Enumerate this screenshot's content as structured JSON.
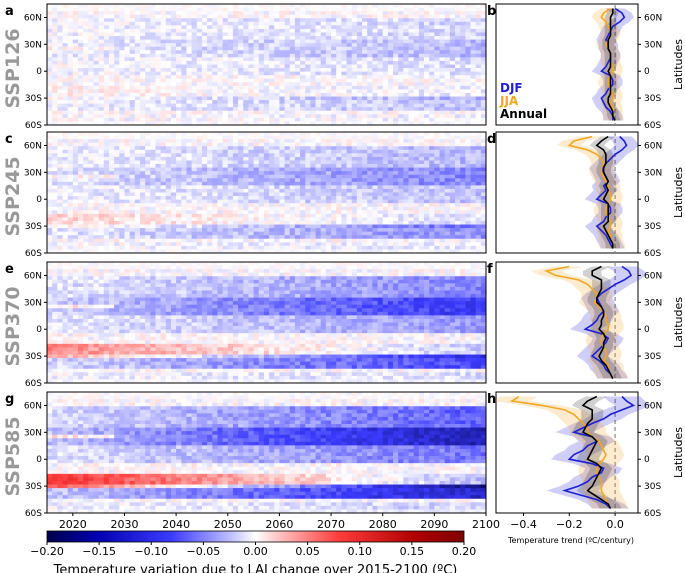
{
  "scenarios": [
    "SSP126",
    "SSP245",
    "SSP370",
    "SSP585"
  ],
  "panel_letters_left": [
    "a",
    "c",
    "e",
    "g"
  ],
  "panel_letters_right": [
    "b",
    "d",
    "f",
    "h"
  ],
  "right_axis_label": "Latitudes",
  "lat_ticks": [
    "60S",
    "30S",
    "0",
    "30N",
    "60N"
  ],
  "trend_lat_ticks": [
    "60S",
    "30S",
    "0",
    "30N",
    "60N"
  ],
  "colors": {
    "DJF": "#1f1fd6",
    "JJA": "#f5a623",
    "Annual": "#000000",
    "zero_line": "#888888"
  },
  "chart_data": [
    {
      "type": "heatmap",
      "panels": [
        "a",
        "c",
        "e",
        "g"
      ],
      "x": {
        "ticks": [
          2020,
          2030,
          2040,
          2050,
          2060,
          2070,
          2080,
          2090,
          2100
        ],
        "range": [
          2015,
          2100
        ]
      },
      "y": {
        "tick_labels": [
          "60S",
          "30S",
          "0",
          "30N",
          "60N"
        ],
        "range": [
          -60,
          75
        ]
      },
      "colorbar": {
        "label": "Temperature variation due to LAI change over 2015-2100 (ºC)",
        "ticks": [
          "−0.20",
          "−0.15",
          "−0.10",
          "−0.05",
          "0.00",
          "0.05",
          "0.10",
          "0.15",
          "0.20"
        ],
        "range": [
          -0.2,
          0.2
        ],
        "colormap": "seismic"
      }
    },
    {
      "type": "line",
      "panels": [
        "b",
        "d",
        "f",
        "h"
      ],
      "xlabel": "Temperature trend (ºC/century)",
      "xticks": [
        "−0.4",
        "−0.2",
        "0.0"
      ],
      "xlim": [
        -0.52,
        0.1
      ],
      "ylim": [
        -60,
        75
      ],
      "legend": {
        "placement": "bottom-left of panel b",
        "entries": [
          "DJF",
          "JJA",
          "Annual"
        ]
      },
      "series": [
        {
          "name": "DJF",
          "lat": [
            70,
            65,
            60,
            55,
            50,
            45,
            40,
            35,
            30,
            25,
            20,
            15,
            10,
            5,
            0,
            -5,
            -10,
            -15,
            -20,
            -25,
            -30,
            -35,
            -40,
            -45,
            -50,
            -55
          ],
          "values": {
            "SSP126": [
              0.0,
              0.03,
              0.04,
              0.02,
              -0.01,
              -0.02,
              -0.03,
              -0.04,
              -0.03,
              -0.03,
              -0.02,
              -0.02,
              -0.03,
              -0.04,
              -0.06,
              -0.02,
              -0.01,
              -0.01,
              -0.03,
              -0.04,
              -0.06,
              -0.05,
              -0.04,
              -0.02,
              -0.01,
              -0.01
            ],
            "SSP245": [
              0.02,
              0.04,
              0.05,
              0.03,
              0.0,
              -0.02,
              -0.04,
              -0.06,
              -0.05,
              -0.04,
              -0.03,
              -0.05,
              -0.04,
              -0.06,
              -0.08,
              -0.03,
              -0.02,
              -0.02,
              -0.04,
              -0.05,
              -0.08,
              -0.06,
              -0.04,
              -0.03,
              -0.02,
              -0.01
            ],
            "SSP370": [
              0.03,
              0.06,
              0.07,
              0.04,
              0.0,
              -0.03,
              -0.06,
              -0.08,
              -0.07,
              -0.06,
              -0.05,
              -0.07,
              -0.08,
              -0.1,
              -0.13,
              -0.06,
              -0.03,
              -0.04,
              -0.06,
              -0.08,
              -0.1,
              -0.07,
              -0.05,
              -0.04,
              -0.02,
              -0.01
            ],
            "SSP585": [
              0.03,
              0.05,
              0.08,
              0.03,
              -0.02,
              -0.05,
              -0.1,
              -0.14,
              -0.18,
              -0.1,
              -0.08,
              -0.12,
              -0.14,
              -0.18,
              -0.2,
              -0.1,
              -0.05,
              -0.06,
              -0.1,
              -0.12,
              -0.16,
              -0.22,
              -0.15,
              -0.08,
              -0.04,
              -0.02
            ]
          }
        },
        {
          "name": "JJA",
          "lat": [
            70,
            65,
            60,
            55,
            50,
            45,
            40,
            35,
            30,
            25,
            20,
            15,
            10,
            5,
            0,
            -5,
            -10,
            -15,
            -20,
            -25,
            -30,
            -35,
            -40,
            -45,
            -50,
            -55
          ],
          "values": {
            "SSP126": [
              -0.02,
              -0.05,
              -0.06,
              -0.04,
              -0.03,
              -0.02,
              -0.02,
              -0.03,
              -0.04,
              -0.03,
              -0.02,
              -0.02,
              -0.02,
              -0.01,
              -0.01,
              -0.02,
              -0.03,
              -0.03,
              -0.02,
              -0.01,
              -0.01,
              -0.02,
              -0.01,
              -0.01,
              -0.01,
              0.0
            ],
            "SSP245": [
              -0.1,
              -0.18,
              -0.2,
              -0.12,
              -0.08,
              -0.06,
              -0.05,
              -0.06,
              -0.06,
              -0.05,
              -0.04,
              -0.03,
              -0.03,
              -0.02,
              -0.02,
              -0.03,
              -0.04,
              -0.04,
              -0.03,
              -0.02,
              -0.02,
              -0.03,
              -0.02,
              -0.02,
              -0.01,
              -0.01
            ],
            "SSP370": [
              -0.2,
              -0.3,
              -0.26,
              -0.16,
              -0.12,
              -0.1,
              -0.08,
              -0.08,
              -0.09,
              -0.07,
              -0.05,
              -0.04,
              -0.04,
              -0.03,
              -0.03,
              -0.05,
              -0.06,
              -0.06,
              -0.05,
              -0.04,
              -0.04,
              -0.05,
              -0.03,
              -0.03,
              -0.02,
              -0.01
            ],
            "SSP585": [
              -0.42,
              -0.45,
              -0.32,
              -0.22,
              -0.18,
              -0.16,
              -0.14,
              -0.12,
              -0.12,
              -0.1,
              -0.07,
              -0.06,
              -0.05,
              -0.04,
              -0.05,
              -0.07,
              -0.08,
              -0.08,
              -0.07,
              -0.06,
              -0.06,
              -0.06,
              -0.05,
              -0.04,
              -0.03,
              -0.02
            ]
          }
        },
        {
          "name": "Annual",
          "lat": [
            70,
            65,
            60,
            55,
            50,
            45,
            40,
            35,
            30,
            25,
            20,
            15,
            10,
            5,
            0,
            -5,
            -10,
            -15,
            -20,
            -25,
            -30,
            -35,
            -40,
            -45,
            -50,
            -55
          ],
          "values": {
            "SSP126": [
              -0.01,
              -0.01,
              -0.02,
              -0.02,
              -0.02,
              -0.02,
              -0.02,
              -0.03,
              -0.03,
              -0.03,
              -0.02,
              -0.02,
              -0.02,
              -0.02,
              -0.03,
              -0.02,
              -0.02,
              -0.02,
              -0.02,
              -0.02,
              -0.03,
              -0.03,
              -0.02,
              -0.01,
              -0.01,
              0.0
            ],
            "SSP245": [
              -0.03,
              -0.06,
              -0.08,
              -0.05,
              -0.04,
              -0.04,
              -0.04,
              -0.05,
              -0.05,
              -0.04,
              -0.03,
              -0.04,
              -0.03,
              -0.04,
              -0.05,
              -0.03,
              -0.03,
              -0.03,
              -0.03,
              -0.03,
              -0.05,
              -0.04,
              -0.03,
              -0.02,
              -0.01,
              -0.01
            ],
            "SSP370": [
              -0.06,
              -0.1,
              -0.1,
              -0.06,
              -0.06,
              -0.06,
              -0.07,
              -0.08,
              -0.08,
              -0.06,
              -0.05,
              -0.05,
              -0.06,
              -0.06,
              -0.07,
              -0.05,
              -0.04,
              -0.05,
              -0.05,
              -0.06,
              -0.07,
              -0.06,
              -0.04,
              -0.03,
              -0.02,
              -0.01
            ],
            "SSP585": [
              -0.08,
              -0.12,
              -0.14,
              -0.1,
              -0.1,
              -0.1,
              -0.12,
              -0.13,
              -0.14,
              -0.1,
              -0.08,
              -0.09,
              -0.1,
              -0.11,
              -0.12,
              -0.08,
              -0.06,
              -0.07,
              -0.08,
              -0.09,
              -0.1,
              -0.12,
              -0.09,
              -0.06,
              -0.03,
              -0.02
            ]
          }
        }
      ]
    }
  ]
}
